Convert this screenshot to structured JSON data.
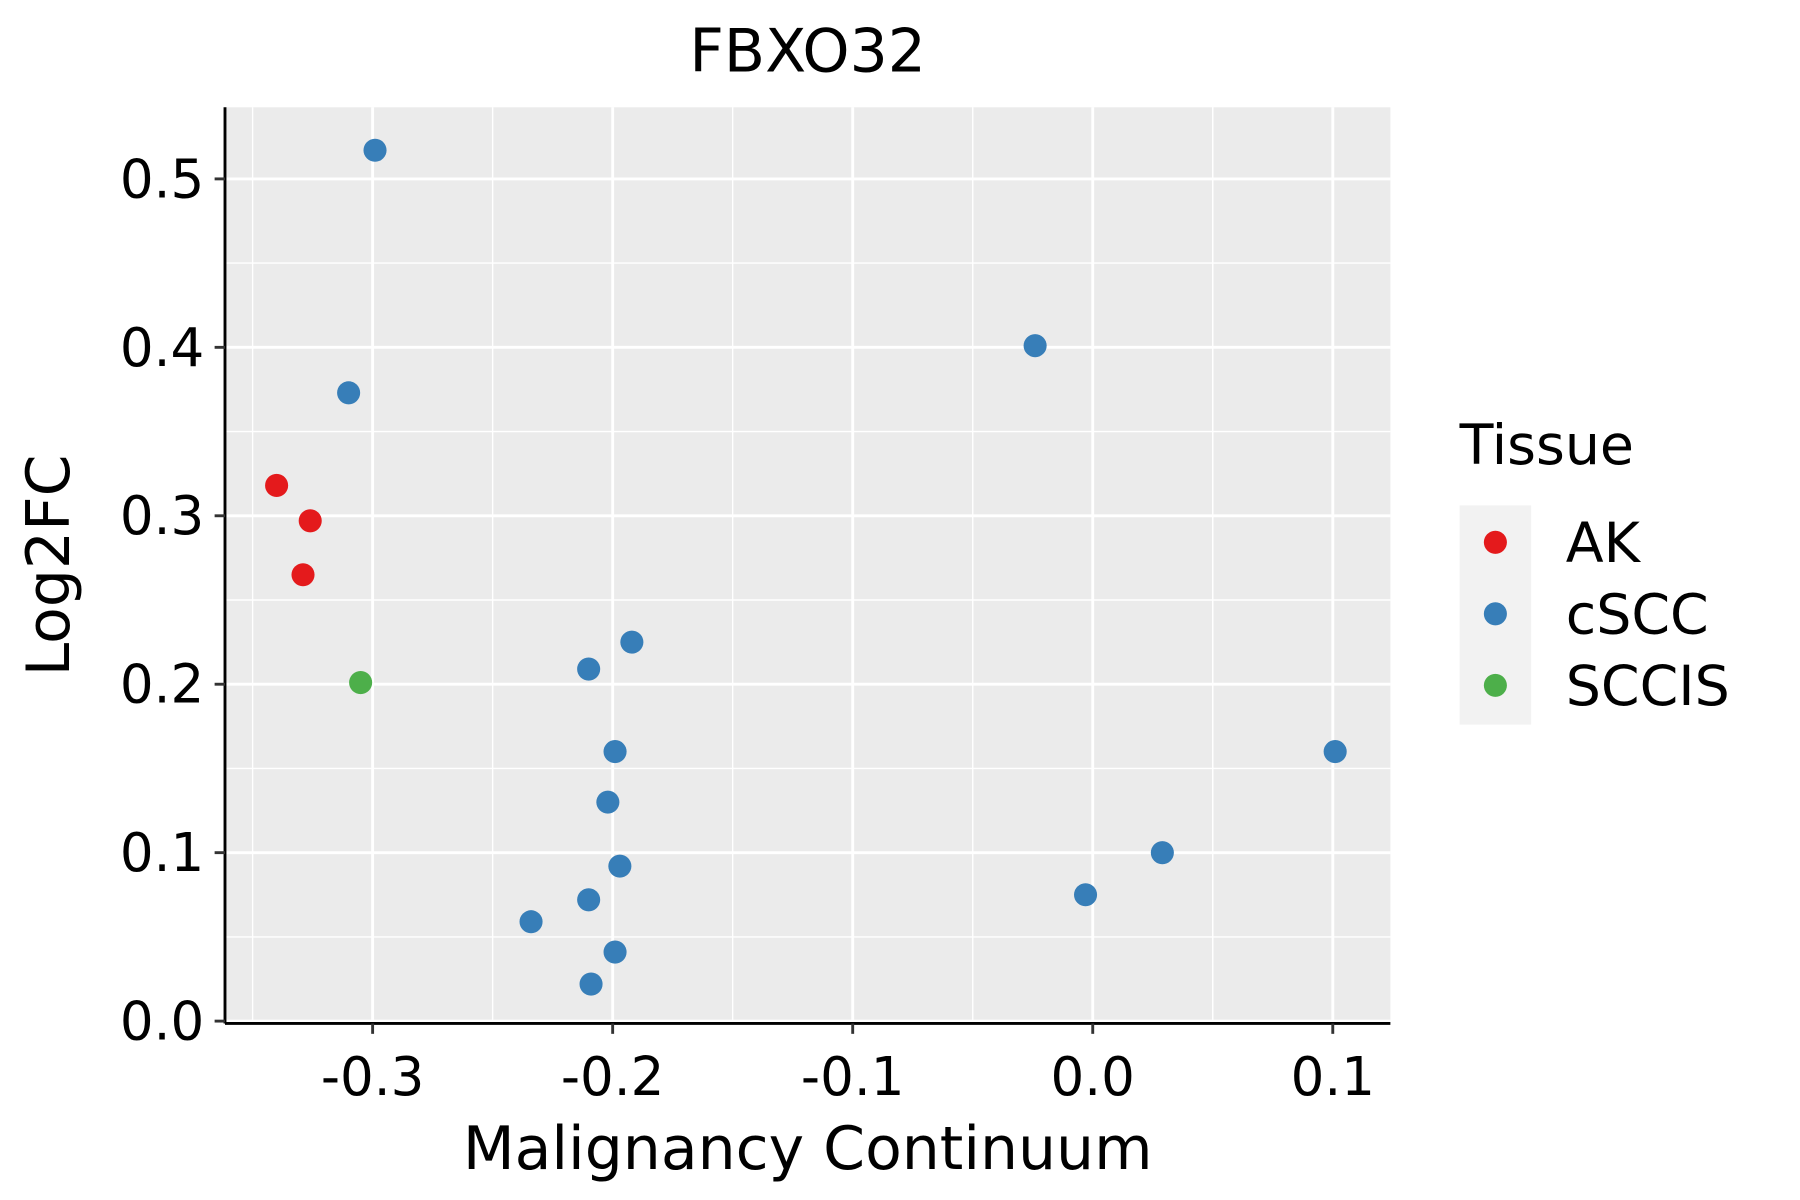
{
  "chart_data": {
    "type": "scatter",
    "title": "FBXO32",
    "xlabel": "Malignancy Continuum",
    "ylabel": "Log2FC",
    "xlim": [
      -0.3615,
      0.124
    ],
    "ylim": [
      -0.0014,
      0.5425
    ],
    "xticks": [
      -0.3,
      -0.2,
      -0.1,
      0.0,
      0.1
    ],
    "xtick_labels": [
      "-0.3",
      "-0.2",
      "-0.1",
      "0.0",
      "0.1"
    ],
    "yticks": [
      0.0,
      0.1,
      0.2,
      0.3,
      0.4,
      0.5
    ],
    "ytick_labels": [
      "0.0",
      "0.1",
      "0.2",
      "0.3",
      "0.4",
      "0.5"
    ],
    "grid": true,
    "legend": {
      "title": "Tissue",
      "placement": "right",
      "entries": [
        {
          "label": "AK",
          "color": "#E41A1C"
        },
        {
          "label": "cSCC",
          "color": "#377EB8"
        },
        {
          "label": "SCCIS",
          "color": "#4DAF4A"
        }
      ]
    },
    "points": [
      {
        "x": -0.299,
        "y": 0.517,
        "tissue": "cSCC"
      },
      {
        "x": -0.024,
        "y": 0.401,
        "tissue": "cSCC"
      },
      {
        "x": -0.31,
        "y": 0.373,
        "tissue": "cSCC"
      },
      {
        "x": -0.34,
        "y": 0.318,
        "tissue": "AK"
      },
      {
        "x": -0.326,
        "y": 0.297,
        "tissue": "AK"
      },
      {
        "x": -0.329,
        "y": 0.265,
        "tissue": "AK"
      },
      {
        "x": -0.305,
        "y": 0.201,
        "tissue": "SCCIS"
      },
      {
        "x": -0.192,
        "y": 0.225,
        "tissue": "cSCC"
      },
      {
        "x": -0.21,
        "y": 0.209,
        "tissue": "cSCC"
      },
      {
        "x": -0.199,
        "y": 0.16,
        "tissue": "cSCC"
      },
      {
        "x": -0.202,
        "y": 0.13,
        "tissue": "cSCC"
      },
      {
        "x": -0.197,
        "y": 0.092,
        "tissue": "cSCC"
      },
      {
        "x": -0.21,
        "y": 0.072,
        "tissue": "cSCC"
      },
      {
        "x": -0.234,
        "y": 0.059,
        "tissue": "cSCC"
      },
      {
        "x": -0.199,
        "y": 0.041,
        "tissue": "cSCC"
      },
      {
        "x": -0.209,
        "y": 0.022,
        "tissue": "cSCC"
      },
      {
        "x": 0.101,
        "y": 0.16,
        "tissue": "cSCC"
      },
      {
        "x": 0.029,
        "y": 0.1,
        "tissue": "cSCC"
      },
      {
        "x": -0.003,
        "y": 0.075,
        "tissue": "cSCC"
      }
    ]
  }
}
